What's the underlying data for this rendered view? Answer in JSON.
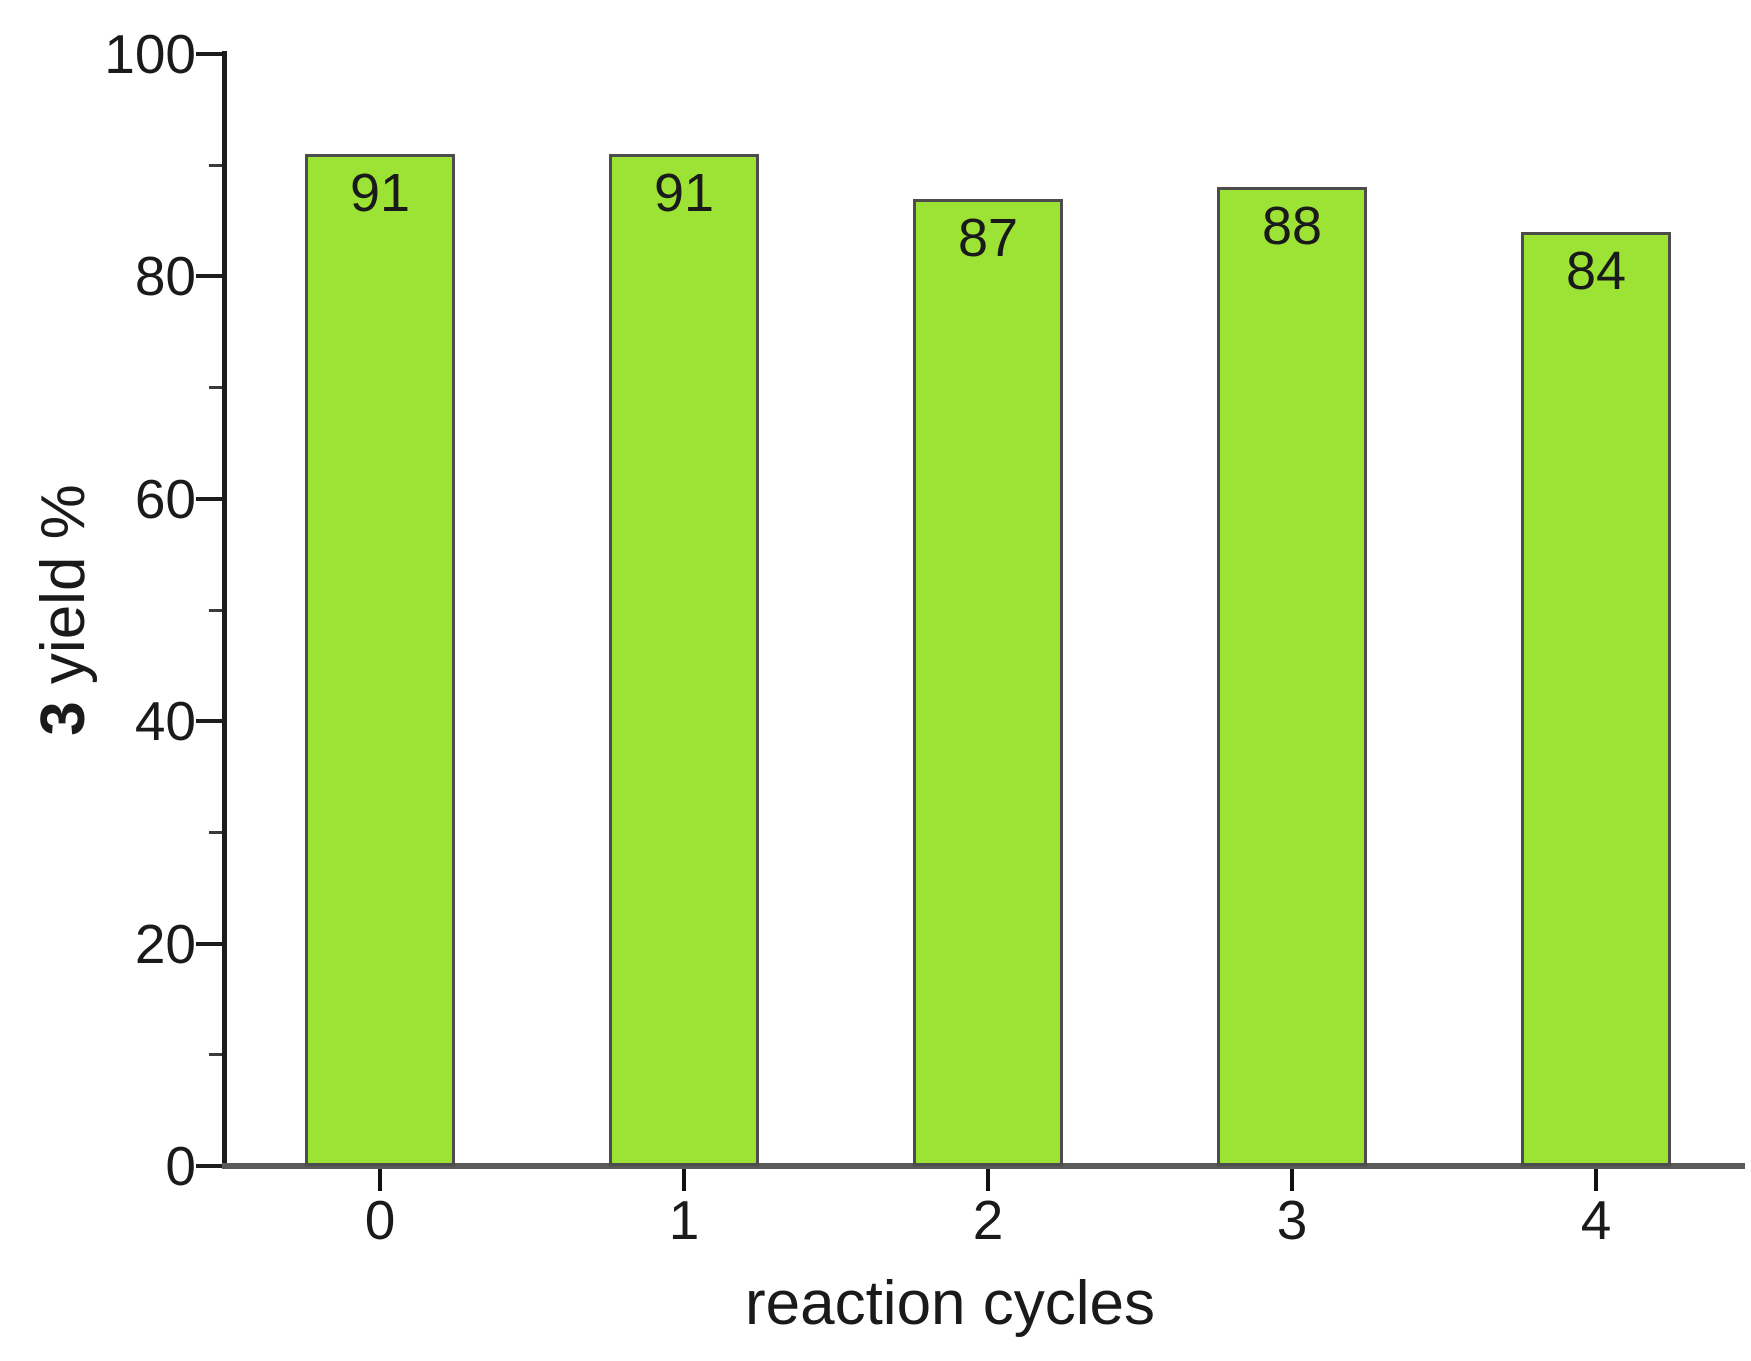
{
  "chart_data": {
    "type": "bar",
    "categories": [
      "0",
      "1",
      "2",
      "3",
      "4"
    ],
    "values": [
      91,
      91,
      87,
      88,
      84
    ],
    "bar_value_labels": [
      "91",
      "91",
      "87",
      "88",
      "84"
    ],
    "title": "",
    "xlabel": "reaction cycles",
    "ylabel": "3 yield %",
    "ylabel_bold_part": "3",
    "ylabel_regular_part": " yield %",
    "ylim": [
      0,
      100
    ],
    "y_major_ticks": [
      0,
      20,
      40,
      60,
      80,
      100
    ],
    "y_major_tick_labels": [
      "0",
      "20",
      "40",
      "60",
      "80",
      "100"
    ],
    "y_minor_ticks": [
      10,
      30,
      50,
      70,
      90
    ],
    "grid": false,
    "legend": "none",
    "bar_label_position": "inside-top",
    "colors": {
      "bar_fill": "#9de336",
      "bar_border": "#4c4c4c",
      "x_axis_line": "#5a5a5a",
      "y_axis_line": "#1c1c1c",
      "text": "#1a1a1a",
      "background": "#ffffff"
    }
  }
}
